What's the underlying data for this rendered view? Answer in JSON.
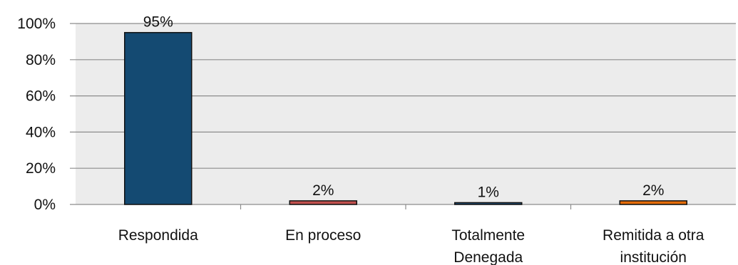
{
  "chart_data": {
    "type": "bar",
    "categories": [
      [
        "Respondida"
      ],
      [
        "En proceso"
      ],
      [
        "Totalmente",
        "Denegada"
      ],
      [
        "Remitida a otra",
        "institución"
      ]
    ],
    "values": [
      95,
      2,
      1,
      2
    ],
    "data_labels": [
      "95%",
      "2%",
      "1%",
      "2%"
    ],
    "ylim": [
      0,
      100
    ],
    "y_ticks": [
      0,
      20,
      40,
      60,
      80,
      100
    ],
    "y_tick_labels": [
      "0%",
      "20%",
      "40%",
      "60%",
      "80%",
      "100%"
    ],
    "grid": true,
    "legend": "none",
    "colors": {
      "plot_background": "#ececec",
      "gridline": "#8c8c8c",
      "bars": [
        "#144a72",
        "#c0504d",
        "#1f4e79",
        "#e46c0a"
      ]
    }
  }
}
